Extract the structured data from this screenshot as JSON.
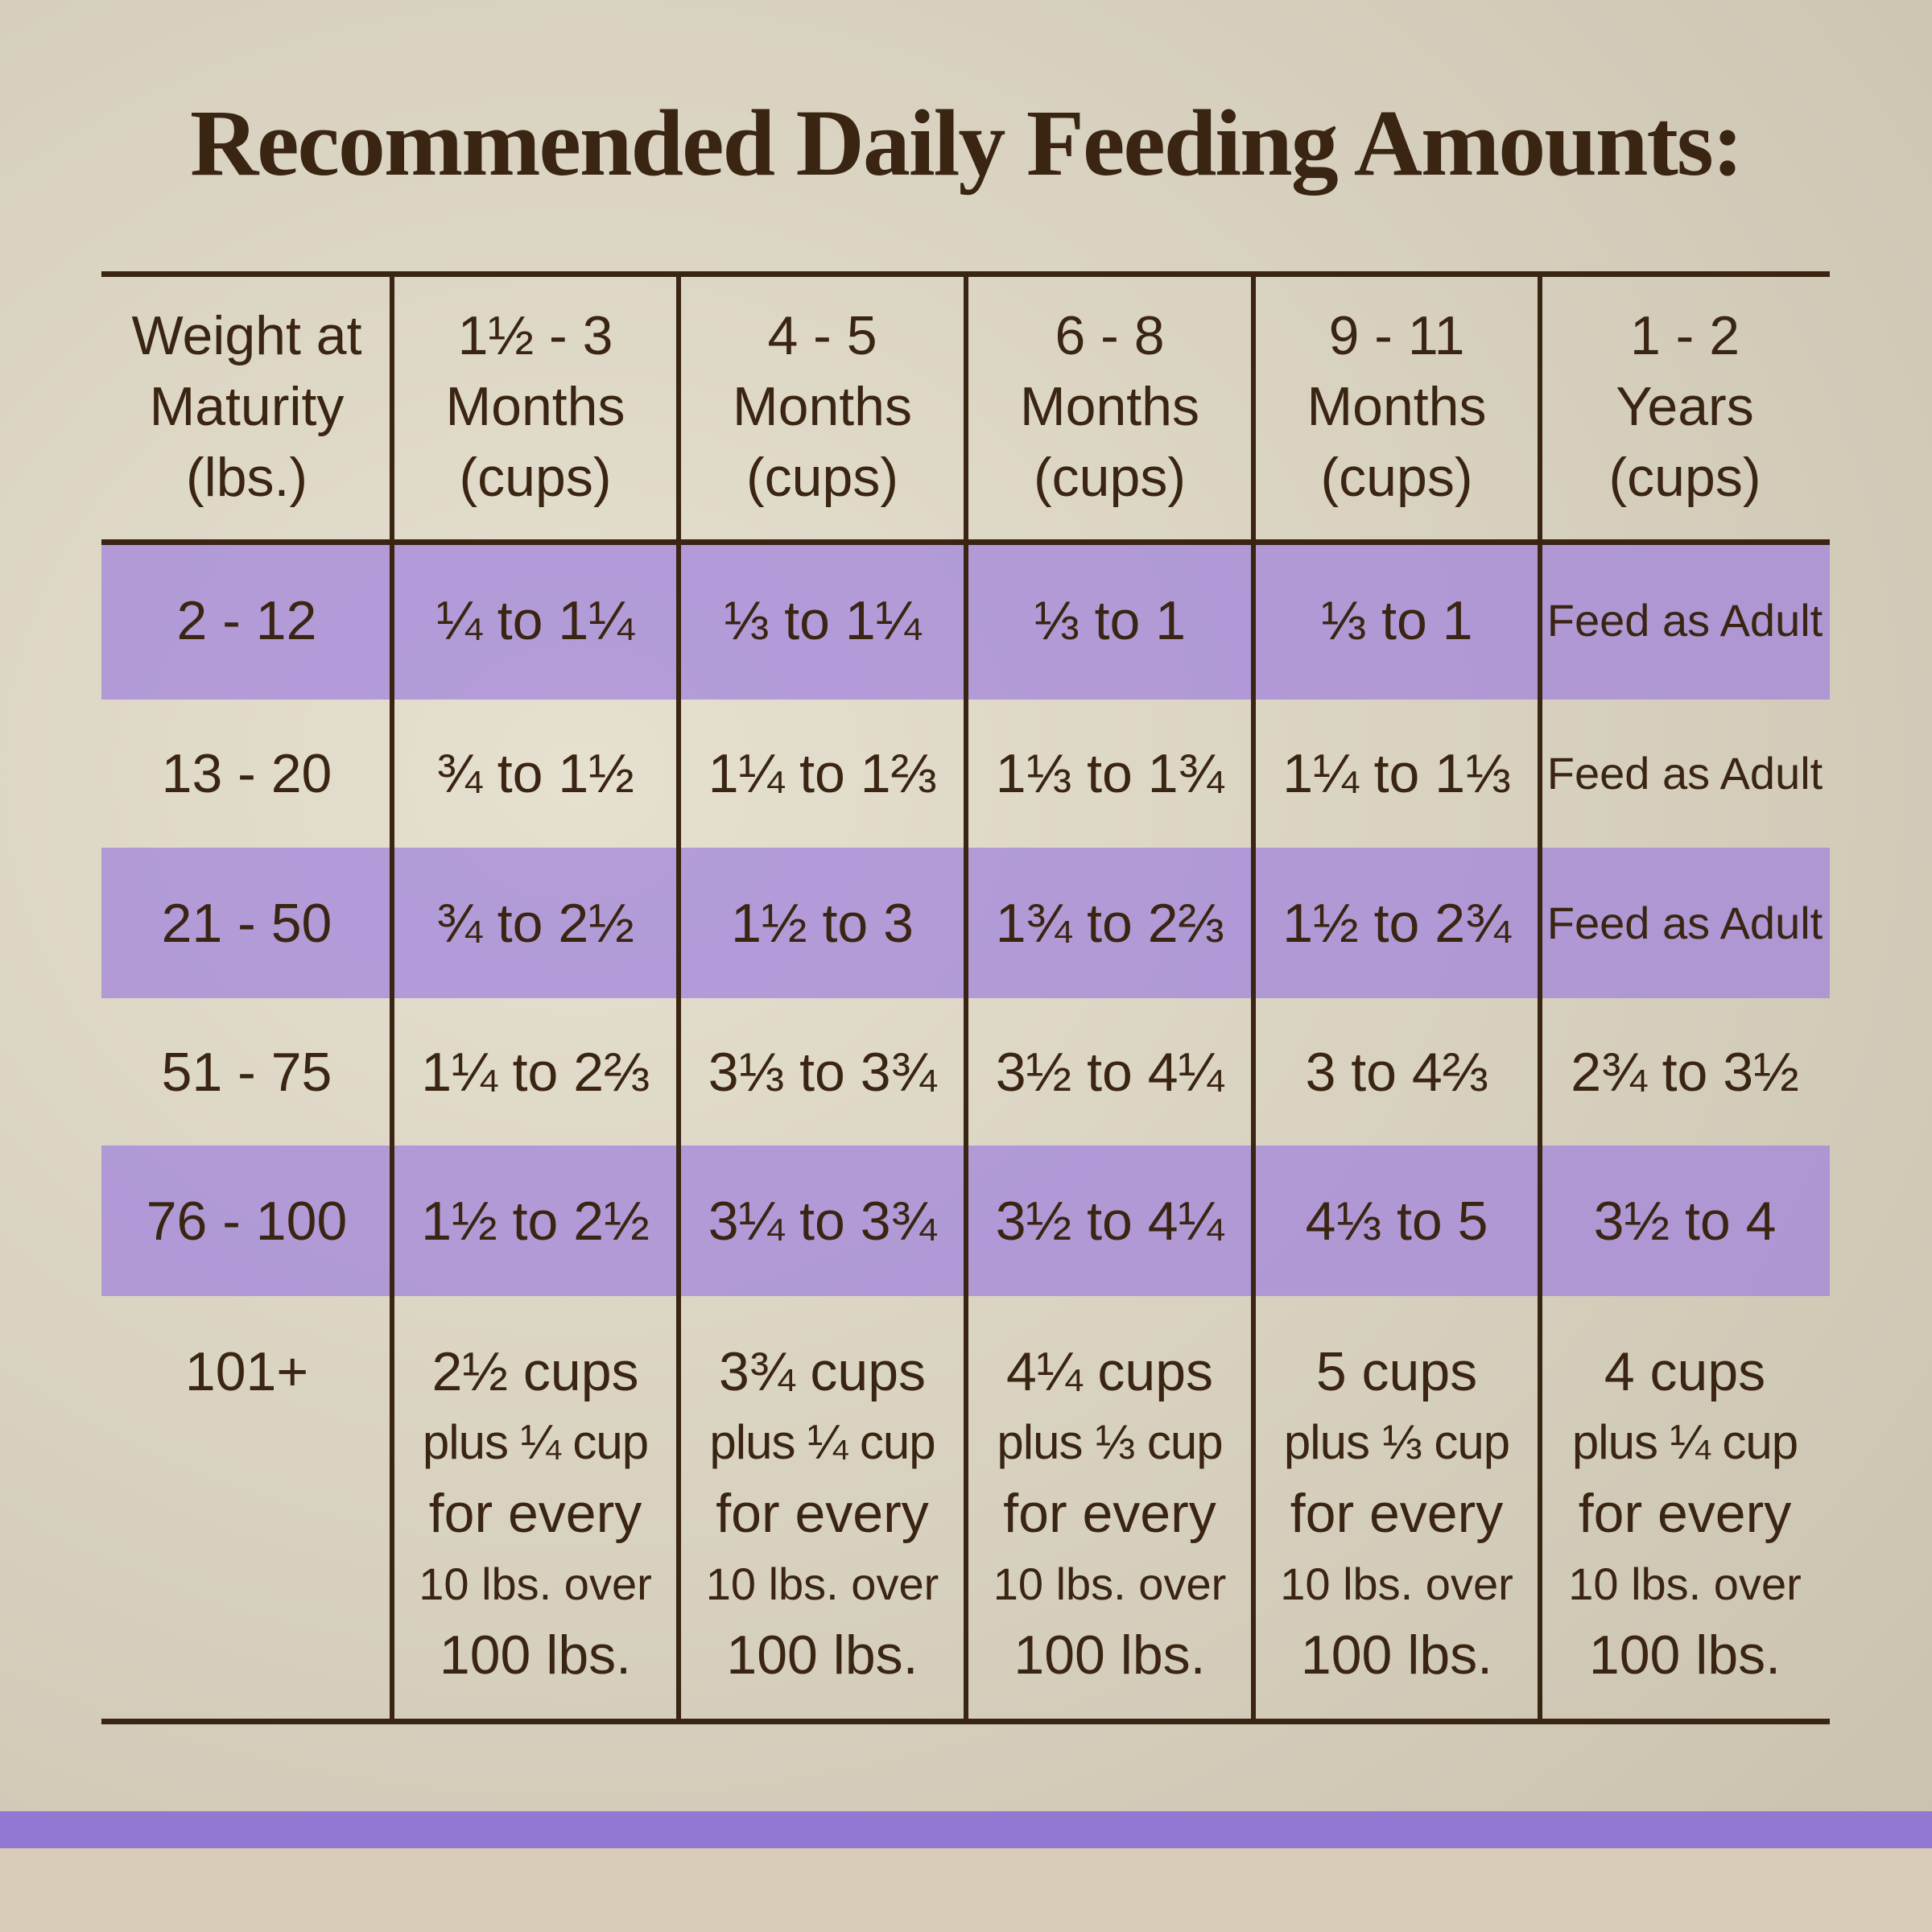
{
  "title": "Recommended Daily Feeding Amounts:",
  "table": {
    "header": [
      [
        "Weight at",
        "Maturity",
        "(lbs.)"
      ],
      [
        "1½ - 3",
        "Months",
        "(cups)"
      ],
      [
        "4 - 5",
        "Months",
        "(cups)"
      ],
      [
        "6 - 8",
        "Months",
        "(cups)"
      ],
      [
        "9 - 11",
        "Months",
        "(cups)"
      ],
      [
        "1 - 2",
        "Years",
        "(cups)"
      ]
    ],
    "rows": [
      [
        [
          "2 - 12"
        ],
        [
          "¼ to 1¼"
        ],
        [
          "⅓ to 1¼"
        ],
        [
          "⅓ to 1"
        ],
        [
          "⅓ to 1"
        ],
        [
          "Feed as Adult"
        ]
      ],
      [
        [
          "13 - 20"
        ],
        [
          "¾ to 1½"
        ],
        [
          "1¼ to 1⅔"
        ],
        [
          "1⅓ to 1¾"
        ],
        [
          "1¼ to 1⅓"
        ],
        [
          "Feed as Adult"
        ]
      ],
      [
        [
          "21 - 50"
        ],
        [
          "¾ to 2½"
        ],
        [
          "1½ to 3"
        ],
        [
          "1¾ to 2⅔"
        ],
        [
          "1½ to 2¾"
        ],
        [
          "Feed as Adult"
        ]
      ],
      [
        [
          "51 - 75"
        ],
        [
          "1¼ to 2⅔"
        ],
        [
          "3⅓ to 3¾"
        ],
        [
          "3½ to 4¼"
        ],
        [
          "3 to 4⅔"
        ],
        [
          "2¾ to 3½"
        ]
      ],
      [
        [
          "76 - 100"
        ],
        [
          "1½ to 2½"
        ],
        [
          "3¼ to 3¾"
        ],
        [
          "3½ to 4¼"
        ],
        [
          "4⅓ to 5"
        ],
        [
          "3½ to 4"
        ]
      ],
      [
        [
          "101+"
        ],
        [
          "2½ cups",
          "plus ¼ cup",
          "for every",
          "10 lbs. over",
          "100 lbs."
        ],
        [
          "3¾ cups",
          "plus ¼ cup",
          "for every",
          "10 lbs. over",
          "100 lbs."
        ],
        [
          "4¼ cups",
          "plus ⅓ cup",
          "for every",
          "10 lbs. over",
          "100 lbs."
        ],
        [
          "5 cups",
          "plus ⅓ cup",
          "for every",
          "10 lbs. over",
          "100 lbs."
        ],
        [
          "4 cups",
          "plus ¼ cup",
          "for every",
          "10 lbs. over",
          "100 lbs."
        ]
      ]
    ]
  }
}
